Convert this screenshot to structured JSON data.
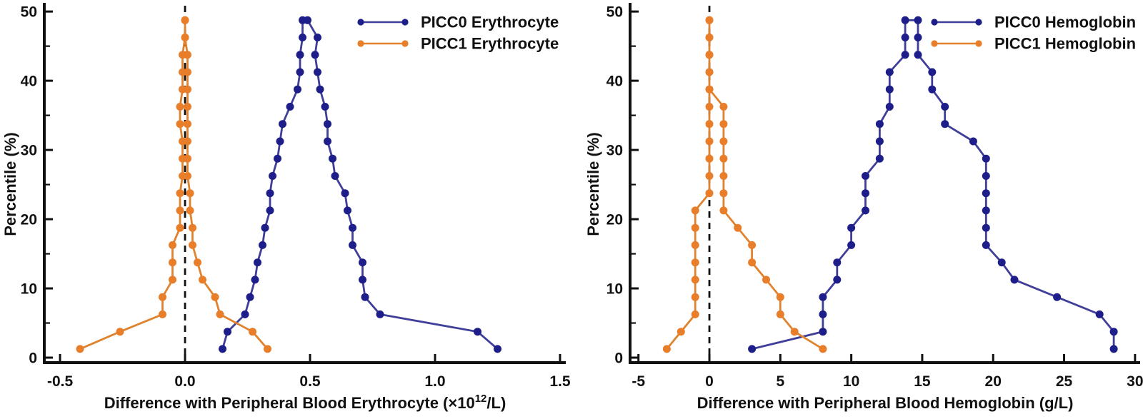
{
  "figure": {
    "background": "#ffffff",
    "text_color": "#111111",
    "colors": {
      "picc0_marker": "#1e1e8a",
      "picc0_line": "#3f3f99",
      "picc1_marker": "#e87d2a",
      "picc1_line": "#e0832f",
      "zero_line": "#111111"
    }
  },
  "chart_data": [
    {
      "type": "line",
      "subtype": "mountain-percentile-plot",
      "title": "",
      "ylabel": "Percentile (%)",
      "xlabel_segments": [
        {
          "t": "Difference with Peripheral Blood Erythrocyte  (×10"
        },
        {
          "t": "12",
          "sup": true
        },
        {
          "t": "/L)"
        }
      ],
      "xlim": [
        -0.563,
        1.523
      ],
      "ylim": [
        -0.72,
        50.84
      ],
      "grid": false,
      "legend_position": "top-right",
      "zero_reference_line": 0,
      "x_ticks": [
        {
          "v": -0.5,
          "label": "-0.5"
        },
        {
          "v": 0.0,
          "label": "0.0"
        },
        {
          "v": 0.5,
          "label": "0.5"
        },
        {
          "v": 1.0,
          "label": "1.0"
        },
        {
          "v": 1.5,
          "label": "1.5"
        }
      ],
      "y_ticks": [
        {
          "v": 0,
          "label": "0"
        },
        {
          "v": 10,
          "label": "10"
        },
        {
          "v": 20,
          "label": "20"
        },
        {
          "v": 30,
          "label": "30"
        },
        {
          "v": 40,
          "label": "40"
        },
        {
          "v": 50,
          "label": "50"
        }
      ],
      "y_minor_ticks": [
        5,
        15,
        25,
        35,
        45
      ],
      "series": [
        {
          "name": "PICC0 Erythrocyte",
          "color_key": "picc0",
          "points": [
            [
              0.15,
              1.25
            ],
            [
              0.17,
              3.75
            ],
            [
              0.24,
              6.25
            ],
            [
              0.26,
              8.75
            ],
            [
              0.28,
              11.25
            ],
            [
              0.29,
              13.75
            ],
            [
              0.31,
              16.25
            ],
            [
              0.32,
              18.75
            ],
            [
              0.34,
              21.25
            ],
            [
              0.34,
              23.75
            ],
            [
              0.35,
              26.25
            ],
            [
              0.37,
              28.75
            ],
            [
              0.38,
              31.25
            ],
            [
              0.39,
              33.75
            ],
            [
              0.42,
              36.25
            ],
            [
              0.45,
              38.75
            ],
            [
              0.46,
              41.25
            ],
            [
              0.46,
              43.75
            ],
            [
              0.47,
              46.25
            ],
            [
              0.47,
              48.75
            ],
            [
              0.49,
              48.75
            ],
            [
              0.53,
              46.25
            ],
            [
              0.52,
              43.75
            ],
            [
              0.53,
              41.25
            ],
            [
              0.54,
              38.75
            ],
            [
              0.56,
              36.25
            ],
            [
              0.57,
              33.75
            ],
            [
              0.57,
              31.25
            ],
            [
              0.59,
              28.75
            ],
            [
              0.6,
              26.25
            ],
            [
              0.64,
              23.75
            ],
            [
              0.65,
              21.25
            ],
            [
              0.67,
              18.75
            ],
            [
              0.67,
              16.25
            ],
            [
              0.71,
              13.75
            ],
            [
              0.71,
              11.25
            ],
            [
              0.72,
              8.75
            ],
            [
              0.78,
              6.25
            ],
            [
              1.17,
              3.75
            ],
            [
              1.25,
              1.25
            ]
          ]
        },
        {
          "name": "PICC1 Erythrocyte",
          "color_key": "picc1",
          "points": [
            [
              -0.42,
              1.25
            ],
            [
              -0.26,
              3.75
            ],
            [
              -0.09,
              6.25
            ],
            [
              -0.09,
              8.75
            ],
            [
              -0.05,
              11.25
            ],
            [
              -0.05,
              13.75
            ],
            [
              -0.05,
              16.25
            ],
            [
              -0.02,
              18.75
            ],
            [
              -0.02,
              21.25
            ],
            [
              -0.02,
              23.75
            ],
            [
              -0.01,
              26.25
            ],
            [
              -0.01,
              28.75
            ],
            [
              -0.01,
              31.25
            ],
            [
              -0.02,
              33.75
            ],
            [
              -0.02,
              36.25
            ],
            [
              -0.01,
              38.75
            ],
            [
              -0.01,
              41.25
            ],
            [
              -0.01,
              43.75
            ],
            [
              0.0,
              46.25
            ],
            [
              0.0,
              48.75
            ],
            [
              0.0,
              48.75
            ],
            [
              0.0,
              46.25
            ],
            [
              0.01,
              43.75
            ],
            [
              0.01,
              41.25
            ],
            [
              0.01,
              38.75
            ],
            [
              0.01,
              36.25
            ],
            [
              0.01,
              33.75
            ],
            [
              0.01,
              31.25
            ],
            [
              0.01,
              28.75
            ],
            [
              0.01,
              26.25
            ],
            [
              0.02,
              23.75
            ],
            [
              0.02,
              21.25
            ],
            [
              0.03,
              18.75
            ],
            [
              0.03,
              16.25
            ],
            [
              0.05,
              13.75
            ],
            [
              0.07,
              11.25
            ],
            [
              0.12,
              8.75
            ],
            [
              0.14,
              6.25
            ],
            [
              0.27,
              3.75
            ],
            [
              0.33,
              1.25
            ]
          ]
        }
      ]
    },
    {
      "type": "line",
      "subtype": "mountain-percentile-plot",
      "title": "",
      "ylabel": "Percentile (%)",
      "xlabel_segments": [
        {
          "t": "Difference with Peripheral Blood Hemoglobin (g/L)"
        }
      ],
      "xlim": [
        -5.59,
        30.36
      ],
      "ylim": [
        -0.72,
        50.84
      ],
      "grid": false,
      "legend_position": "top-right",
      "zero_reference_line": 0,
      "x_ticks": [
        {
          "v": -5,
          "label": "-5"
        },
        {
          "v": 0,
          "label": "0"
        },
        {
          "v": 5,
          "label": "5"
        },
        {
          "v": 10,
          "label": "10"
        },
        {
          "v": 15,
          "label": "15"
        },
        {
          "v": 20,
          "label": "20"
        },
        {
          "v": 25,
          "label": "25"
        },
        {
          "v": 30,
          "label": "30"
        }
      ],
      "y_ticks": [
        {
          "v": 0,
          "label": "0"
        },
        {
          "v": 10,
          "label": "10"
        },
        {
          "v": 20,
          "label": "20"
        },
        {
          "v": 30,
          "label": "30"
        },
        {
          "v": 40,
          "label": "40"
        },
        {
          "v": 50,
          "label": "50"
        }
      ],
      "y_minor_ticks": [
        5,
        15,
        25,
        35,
        45
      ],
      "series": [
        {
          "name": "PICC0 Hemoglobin",
          "color_key": "picc0",
          "points": [
            [
              3,
              1.25
            ],
            [
              8,
              3.75
            ],
            [
              8,
              6.25
            ],
            [
              8,
              8.75
            ],
            [
              9,
              11.25
            ],
            [
              9,
              13.75
            ],
            [
              10,
              16.25
            ],
            [
              10,
              18.75
            ],
            [
              11,
              21.25
            ],
            [
              11,
              23.75
            ],
            [
              11,
              26.25
            ],
            [
              12,
              28.75
            ],
            [
              12,
              31.25
            ],
            [
              12,
              33.75
            ],
            [
              12.7,
              36.25
            ],
            [
              12.7,
              38.75
            ],
            [
              12.7,
              41.25
            ],
            [
              13.8,
              43.75
            ],
            [
              13.8,
              46.25
            ],
            [
              13.8,
              48.75
            ],
            [
              14.7,
              48.75
            ],
            [
              14.7,
              46.25
            ],
            [
              14.7,
              43.75
            ],
            [
              15.7,
              41.25
            ],
            [
              15.7,
              38.75
            ],
            [
              16.6,
              36.25
            ],
            [
              16.6,
              33.75
            ],
            [
              18.6,
              31.25
            ],
            [
              19.5,
              28.75
            ],
            [
              19.5,
              26.25
            ],
            [
              19.5,
              23.75
            ],
            [
              19.5,
              21.25
            ],
            [
              19.5,
              18.75
            ],
            [
              19.5,
              16.25
            ],
            [
              20.6,
              13.75
            ],
            [
              21.5,
              11.25
            ],
            [
              24.5,
              8.75
            ],
            [
              27.5,
              6.25
            ],
            [
              28.5,
              3.75
            ],
            [
              28.5,
              1.25
            ]
          ]
        },
        {
          "name": "PICC1 Hemoglobin",
          "color_key": "picc1",
          "points": [
            [
              -3,
              1.25
            ],
            [
              -2,
              3.75
            ],
            [
              -1,
              6.25
            ],
            [
              -1,
              8.75
            ],
            [
              -1,
              11.25
            ],
            [
              -1,
              13.75
            ],
            [
              -1,
              16.25
            ],
            [
              -1,
              18.75
            ],
            [
              -1,
              21.25
            ],
            [
              0,
              23.75
            ],
            [
              0,
              26.25
            ],
            [
              0,
              28.75
            ],
            [
              0,
              31.25
            ],
            [
              0,
              33.75
            ],
            [
              0,
              36.25
            ],
            [
              0,
              38.75
            ],
            [
              0,
              41.25
            ],
            [
              0,
              43.75
            ],
            [
              0,
              46.25
            ],
            [
              0,
              48.75
            ],
            [
              0,
              48.75
            ],
            [
              0,
              46.25
            ],
            [
              0,
              43.75
            ],
            [
              0,
              41.25
            ],
            [
              0,
              38.75
            ],
            [
              1,
              36.25
            ],
            [
              1,
              33.75
            ],
            [
              1,
              31.25
            ],
            [
              1,
              28.75
            ],
            [
              1,
              26.25
            ],
            [
              1,
              23.75
            ],
            [
              1,
              21.25
            ],
            [
              2,
              18.75
            ],
            [
              3,
              16.25
            ],
            [
              3,
              13.75
            ],
            [
              4,
              11.25
            ],
            [
              5,
              8.75
            ],
            [
              5,
              6.25
            ],
            [
              6,
              3.75
            ],
            [
              8,
              1.25
            ]
          ]
        }
      ]
    }
  ]
}
